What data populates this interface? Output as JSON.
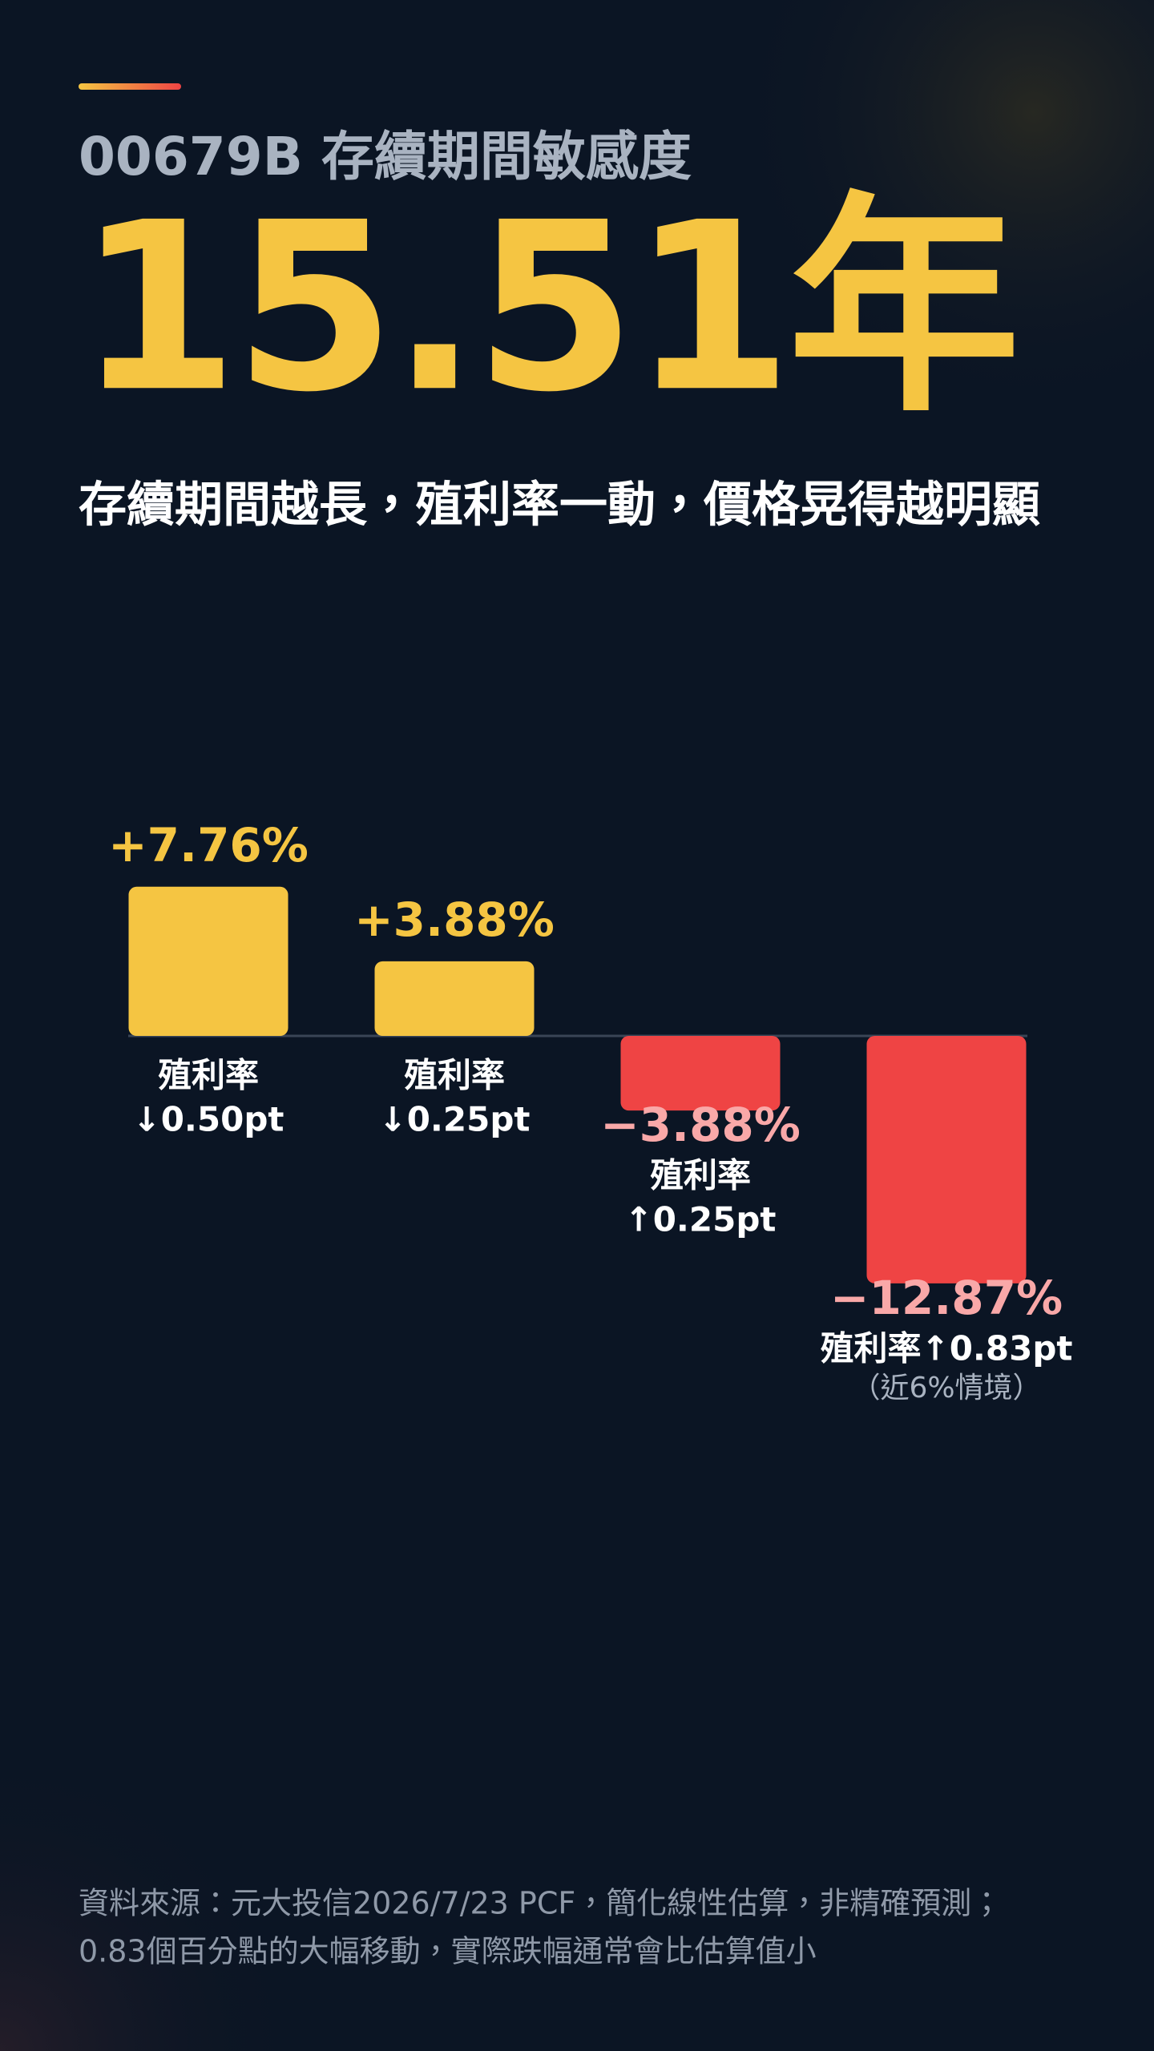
{
  "header": {
    "title": "00679B 存續期間敏感度",
    "headline": "15.51年",
    "subtitle": "存續期間越長，殖利率一動，價格晃得越明顯"
  },
  "chart_data": {
    "type": "bar",
    "categories": [
      [
        "殖利率",
        "↓0.50pt"
      ],
      [
        "殖利率",
        "↓0.25pt"
      ],
      [
        "殖利率",
        "↑0.25pt"
      ],
      [
        "殖利率↑0.83pt",
        "（近6%情境）"
      ]
    ],
    "values": [
      7.76,
      3.88,
      -3.88,
      -12.87
    ],
    "value_labels": [
      "+7.76%",
      "+3.88%",
      "−3.88%",
      "−12.87%"
    ],
    "colors": [
      "#f5c542",
      "#f5c542",
      "#ef4444",
      "#ef4444"
    ],
    "label_colors": [
      "#f5c542",
      "#f5c542",
      "#f9a8a8",
      "#f9a8a8"
    ]
  },
  "footer": {
    "lines": [
      "資料來源：元大投信2026/7/23 PCF，簡化線性估算，非精確預測；",
      "0.83個百分點的大幅移動，實際跌幅通常會比估算值小"
    ]
  }
}
